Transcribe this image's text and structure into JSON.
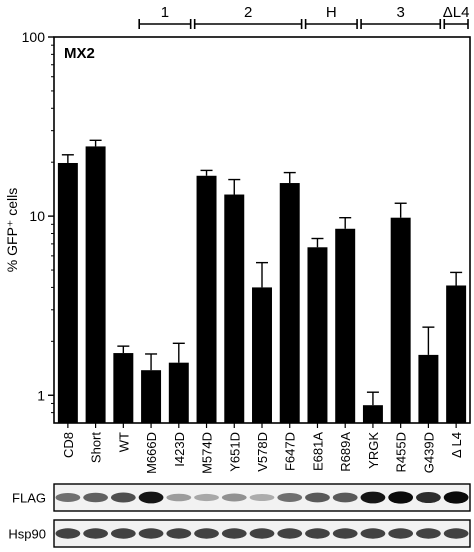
{
  "chart_data": {
    "type": "bar",
    "title": "MX2",
    "ylabel": "% GFP⁺ cells",
    "yscale": "log",
    "ylim": [
      0.7,
      100
    ],
    "yticks": [
      "1",
      "10",
      "100"
    ],
    "categories": [
      "CD8",
      "Short",
      "WT",
      "M666D",
      "I423D",
      "M574D",
      "Y651D",
      "V578D",
      "F647D",
      "E681A",
      "R689A",
      "YRGK",
      "R455D",
      "G439D",
      "Δ L4"
    ],
    "values": [
      19.8,
      24.5,
      1.72,
      1.38,
      1.52,
      16.8,
      13.2,
      4.0,
      15.3,
      6.7,
      8.5,
      0.88,
      9.8,
      1.68,
      4.1
    ],
    "errors_upper": [
      22.0,
      26.5,
      1.88,
      1.7,
      1.95,
      18.0,
      16.0,
      5.5,
      17.5,
      7.5,
      9.8,
      1.04,
      11.8,
      2.4,
      4.85
    ],
    "groups": [
      {
        "label": "1",
        "from": 3,
        "to": 4
      },
      {
        "label": "2",
        "from": 5,
        "to": 8
      },
      {
        "label": "H",
        "from": 9,
        "to": 10
      },
      {
        "label": "3",
        "from": 11,
        "to": 13
      },
      {
        "label": "ΔL4",
        "from": 14,
        "to": 14
      }
    ],
    "bar_color": "#000000",
    "grid": false
  },
  "blots": {
    "lanes": 15,
    "rows": [
      {
        "label": "FLAG",
        "intensity": [
          0.55,
          0.62,
          0.7,
          0.95,
          0.35,
          0.3,
          0.4,
          0.28,
          0.55,
          0.65,
          0.65,
          0.95,
          1.0,
          0.85,
          1.0
        ]
      },
      {
        "label": "Hsp90",
        "intensity": [
          0.75,
          0.75,
          0.75,
          0.75,
          0.75,
          0.75,
          0.75,
          0.75,
          0.75,
          0.75,
          0.75,
          0.75,
          0.75,
          0.75,
          0.75
        ]
      }
    ]
  }
}
